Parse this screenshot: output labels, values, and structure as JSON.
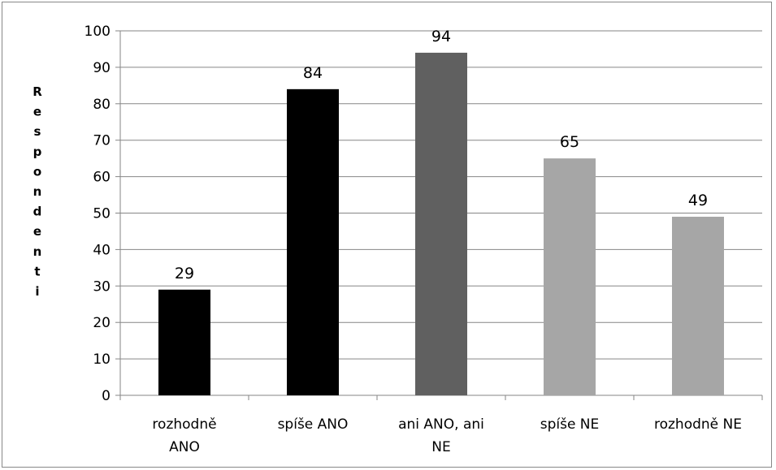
{
  "chart_data": {
    "type": "bar",
    "title": "",
    "xlabel": "",
    "ylabel": "Respondenti",
    "ylim": [
      0,
      100
    ],
    "yticks": [
      0,
      10,
      20,
      30,
      40,
      50,
      60,
      70,
      80,
      90,
      100
    ],
    "grid": true,
    "legend": "none",
    "categories": [
      [
        "rozhodně",
        "ANO"
      ],
      [
        "spíše ANO"
      ],
      [
        "ani ANO, ani",
        "NE"
      ],
      [
        "spíše NE"
      ],
      [
        "rozhodně NE"
      ]
    ],
    "values": [
      29,
      84,
      94,
      65,
      49
    ],
    "colors": [
      "#000000",
      "#000000",
      "#606060",
      "#a6a6a6",
      "#a6a6a6"
    ]
  }
}
